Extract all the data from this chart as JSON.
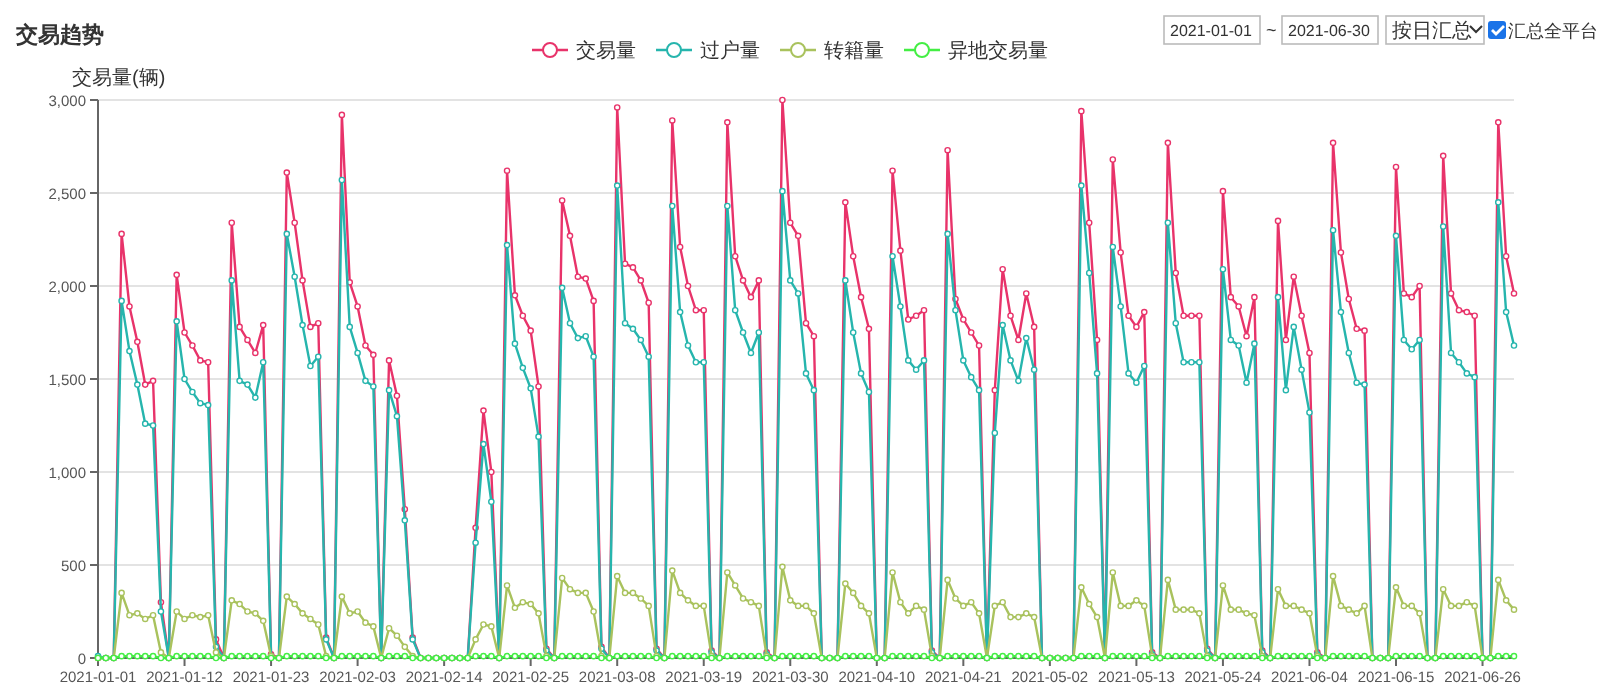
{
  "chart_data": {
    "type": "line",
    "title": "交易趋势",
    "ylabel": "交易量(辆)",
    "annotations": [
      "2021-01-01",
      "~",
      "2021-06-30",
      "按日汇总",
      "汇总全平台"
    ],
    "x": [
      "2021-01-01",
      "2021-01-02",
      "2021-01-03",
      "2021-01-04",
      "2021-01-05",
      "2021-01-06",
      "2021-01-07",
      "2021-01-08",
      "2021-01-09",
      "2021-01-10",
      "2021-01-11",
      "2021-01-12",
      "2021-01-13",
      "2021-01-14",
      "2021-01-15",
      "2021-01-16",
      "2021-01-17",
      "2021-01-18",
      "2021-01-19",
      "2021-01-20",
      "2021-01-21",
      "2021-01-22",
      "2021-01-23",
      "2021-01-24",
      "2021-01-25",
      "2021-01-26",
      "2021-01-27",
      "2021-01-28",
      "2021-01-29",
      "2021-01-30",
      "2021-01-31",
      "2021-02-01",
      "2021-02-02",
      "2021-02-03",
      "2021-02-04",
      "2021-02-05",
      "2021-02-06",
      "2021-02-07",
      "2021-02-08",
      "2021-02-09",
      "2021-02-10",
      "2021-02-11",
      "2021-02-12",
      "2021-02-13",
      "2021-02-14",
      "2021-02-15",
      "2021-02-16",
      "2021-02-17",
      "2021-02-18",
      "2021-02-19",
      "2021-02-20",
      "2021-02-21",
      "2021-02-22",
      "2021-02-23",
      "2021-02-24",
      "2021-02-25",
      "2021-02-26",
      "2021-02-27",
      "2021-02-28",
      "2021-03-01",
      "2021-03-02",
      "2021-03-03",
      "2021-03-04",
      "2021-03-05",
      "2021-03-06",
      "2021-03-07",
      "2021-03-08",
      "2021-03-09",
      "2021-03-10",
      "2021-03-11",
      "2021-03-12",
      "2021-03-13",
      "2021-03-14",
      "2021-03-15",
      "2021-03-16",
      "2021-03-17",
      "2021-03-18",
      "2021-03-19",
      "2021-03-20",
      "2021-03-21",
      "2021-03-22",
      "2021-03-23",
      "2021-03-24",
      "2021-03-25",
      "2021-03-26",
      "2021-03-27",
      "2021-03-28",
      "2021-03-29",
      "2021-03-30",
      "2021-03-31",
      "2021-04-01",
      "2021-04-02",
      "2021-04-03",
      "2021-04-04",
      "2021-04-05",
      "2021-04-06",
      "2021-04-07",
      "2021-04-08",
      "2021-04-09",
      "2021-04-10",
      "2021-04-11",
      "2021-04-12",
      "2021-04-13",
      "2021-04-14",
      "2021-04-15",
      "2021-04-16",
      "2021-04-17",
      "2021-04-18",
      "2021-04-19",
      "2021-04-20",
      "2021-04-21",
      "2021-04-22",
      "2021-04-23",
      "2021-04-24",
      "2021-04-25",
      "2021-04-26",
      "2021-04-27",
      "2021-04-28",
      "2021-04-29",
      "2021-04-30",
      "2021-05-01",
      "2021-05-02",
      "2021-05-03",
      "2021-05-04",
      "2021-05-05",
      "2021-05-06",
      "2021-05-07",
      "2021-05-08",
      "2021-05-09",
      "2021-05-10",
      "2021-05-11",
      "2021-05-12",
      "2021-05-13",
      "2021-05-14",
      "2021-05-15",
      "2021-05-16",
      "2021-05-17",
      "2021-05-18",
      "2021-05-19",
      "2021-05-20",
      "2021-05-21",
      "2021-05-22",
      "2021-05-23",
      "2021-05-24",
      "2021-05-25",
      "2021-05-26",
      "2021-05-27",
      "2021-05-28",
      "2021-05-29",
      "2021-05-30",
      "2021-05-31",
      "2021-06-01",
      "2021-06-02",
      "2021-06-03",
      "2021-06-04",
      "2021-06-05",
      "2021-06-06",
      "2021-06-07",
      "2021-06-08",
      "2021-06-09",
      "2021-06-10",
      "2021-06-11",
      "2021-06-12",
      "2021-06-13",
      "2021-06-14",
      "2021-06-15",
      "2021-06-16",
      "2021-06-17",
      "2021-06-18",
      "2021-06-19",
      "2021-06-20",
      "2021-06-21",
      "2021-06-22",
      "2021-06-23",
      "2021-06-24",
      "2021-06-25",
      "2021-06-26",
      "2021-06-27",
      "2021-06-28",
      "2021-06-29",
      "2021-06-30"
    ],
    "xlim": [
      "2021-01-01",
      "2021-06-30"
    ],
    "xticks": [
      "2021-01-01",
      "2021-01-12",
      "2021-01-23",
      "2021-02-03",
      "2021-02-14",
      "2021-02-25",
      "2021-03-08",
      "2021-03-19",
      "2021-03-30",
      "2021-04-10",
      "2021-04-21",
      "2021-05-02",
      "2021-05-13",
      "2021-05-24",
      "2021-06-04",
      "2021-06-15",
      "2021-06-26"
    ],
    "ylim": [
      0,
      3000
    ],
    "yticks": [
      0,
      500,
      {
        "value": 1000,
        "label": "1,000"
      },
      {
        "value": 1500,
        "label": "1,500"
      },
      {
        "value": 2000,
        "label": "2,000"
      },
      {
        "value": 2500,
        "label": "2,500"
      },
      {
        "value": 3000,
        "label": "3,000"
      }
    ],
    "grid": "y",
    "legend": "top",
    "marker": "circle",
    "line_style": "solid",
    "series": [
      {
        "name": "交易量",
        "color": "#e8336a",
        "values": [
          0,
          0,
          0,
          2280,
          1890,
          1700,
          1470,
          1490,
          300,
          0,
          2060,
          1750,
          1680,
          1600,
          1590,
          100,
          0,
          2340,
          1780,
          1710,
          1640,
          1790,
          20,
          0,
          2610,
          2340,
          2030,
          1780,
          1800,
          110,
          0,
          2920,
          2020,
          1890,
          1680,
          1630,
          0,
          1600,
          1410,
          800,
          110,
          0,
          0,
          0,
          0,
          0,
          0,
          0,
          700,
          1330,
          1000,
          0,
          2620,
          1950,
          1840,
          1760,
          1460,
          50,
          0,
          2460,
          2270,
          2050,
          2040,
          1920,
          60,
          0,
          2960,
          2120,
          2100,
          2030,
          1910,
          50,
          0,
          2890,
          2210,
          2000,
          1870,
          1870,
          40,
          0,
          2880,
          2160,
          2030,
          1940,
          2030,
          30,
          0,
          3000,
          2340,
          2270,
          1800,
          1730,
          0,
          0,
          0,
          2450,
          2160,
          1940,
          1770,
          0,
          0,
          2620,
          2190,
          1820,
          1840,
          1870,
          40,
          0,
          2730,
          1930,
          1820,
          1750,
          1680,
          0,
          1440,
          2090,
          1840,
          1710,
          1960,
          1780,
          0,
          0,
          0,
          0,
          0,
          2940,
          2340,
          1710,
          0,
          2680,
          2180,
          1840,
          1780,
          1860,
          30,
          0,
          2770,
          2070,
          1840,
          1840,
          1840,
          50,
          0,
          2510,
          1940,
          1890,
          1730,
          1940,
          40,
          0,
          2350,
          1710,
          2050,
          1840,
          1640,
          30,
          0,
          2770,
          2180,
          1930,
          1770,
          1760,
          0,
          0,
          0,
          2640,
          1960,
          1940,
          2000,
          0,
          0,
          2700,
          1960,
          1870,
          1860,
          1840,
          0,
          0,
          2880,
          2160,
          1960
        ]
      },
      {
        "name": "过户量",
        "color": "#26b5ad",
        "values": [
          10,
          0,
          0,
          1920,
          1650,
          1470,
          1260,
          1250,
          250,
          0,
          1810,
          1500,
          1430,
          1370,
          1360,
          60,
          0,
          2030,
          1490,
          1470,
          1400,
          1590,
          10,
          0,
          2280,
          2050,
          1790,
          1570,
          1620,
          100,
          0,
          2570,
          1780,
          1640,
          1490,
          1460,
          0,
          1440,
          1300,
          740,
          100,
          0,
          0,
          0,
          0,
          0,
          0,
          0,
          620,
          1150,
          840,
          0,
          2220,
          1690,
          1560,
          1450,
          1190,
          40,
          0,
          1990,
          1800,
          1720,
          1730,
          1620,
          50,
          0,
          2540,
          1800,
          1770,
          1710,
          1620,
          40,
          0,
          2430,
          1860,
          1680,
          1590,
          1590,
          30,
          0,
          2430,
          1870,
          1750,
          1640,
          1750,
          20,
          0,
          2510,
          2030,
          1960,
          1530,
          1440,
          0,
          0,
          0,
          2030,
          1750,
          1530,
          1430,
          0,
          0,
          2160,
          1890,
          1600,
          1550,
          1600,
          30,
          0,
          2280,
          1870,
          1600,
          1510,
          1440,
          0,
          1210,
          1790,
          1600,
          1490,
          1720,
          1550,
          0,
          0,
          0,
          0,
          0,
          2540,
          2070,
          1530,
          0,
          2210,
          1890,
          1530,
          1480,
          1570,
          20,
          0,
          2340,
          1800,
          1590,
          1590,
          1590,
          40,
          0,
          2090,
          1710,
          1680,
          1480,
          1690,
          30,
          0,
          1940,
          1440,
          1780,
          1550,
          1320,
          20,
          0,
          2300,
          1860,
          1640,
          1480,
          1470,
          0,
          0,
          0,
          2270,
          1710,
          1660,
          1710,
          0,
          0,
          2320,
          1640,
          1590,
          1530,
          1510,
          0,
          0,
          2450,
          1860,
          1680
        ]
      },
      {
        "name": "转籍量",
        "color": "#a9c25d",
        "values": [
          0,
          0,
          0,
          350,
          230,
          240,
          210,
          230,
          30,
          0,
          250,
          210,
          230,
          220,
          230,
          30,
          0,
          310,
          290,
          250,
          240,
          200,
          10,
          0,
          330,
          290,
          240,
          210,
          180,
          10,
          0,
          330,
          240,
          250,
          190,
          170,
          0,
          160,
          120,
          60,
          10,
          0,
          0,
          0,
          0,
          0,
          0,
          0,
          100,
          180,
          170,
          0,
          390,
          270,
          300,
          290,
          240,
          10,
          0,
          430,
          370,
          350,
          350,
          250,
          10,
          0,
          440,
          350,
          350,
          320,
          280,
          10,
          0,
          470,
          350,
          310,
          280,
          280,
          10,
          0,
          460,
          390,
          320,
          300,
          280,
          10,
          0,
          490,
          310,
          280,
          280,
          240,
          0,
          0,
          0,
          400,
          350,
          280,
          240,
          0,
          0,
          460,
          300,
          240,
          280,
          260,
          10,
          0,
          420,
          320,
          280,
          300,
          240,
          0,
          280,
          300,
          220,
          220,
          240,
          220,
          0,
          0,
          0,
          0,
          0,
          380,
          290,
          220,
          0,
          460,
          280,
          280,
          310,
          280,
          10,
          0,
          420,
          260,
          260,
          260,
          240,
          10,
          0,
          390,
          260,
          260,
          240,
          230,
          10,
          0,
          370,
          280,
          280,
          260,
          240,
          10,
          0,
          440,
          280,
          260,
          240,
          280,
          0,
          0,
          0,
          380,
          280,
          280,
          240,
          0,
          0,
          370,
          280,
          280,
          300,
          280,
          0,
          0,
          420,
          310,
          260
        ]
      },
      {
        "name": "异地交易量",
        "color": "#44ee44",
        "values": [
          0,
          0,
          0,
          10,
          10,
          10,
          10,
          10,
          0,
          0,
          10,
          10,
          10,
          10,
          10,
          0,
          0,
          10,
          10,
          10,
          10,
          10,
          0,
          0,
          10,
          10,
          10,
          10,
          10,
          0,
          0,
          10,
          10,
          10,
          10,
          10,
          0,
          10,
          10,
          10,
          0,
          0,
          0,
          0,
          0,
          0,
          0,
          0,
          10,
          10,
          10,
          0,
          10,
          10,
          10,
          10,
          10,
          0,
          0,
          10,
          10,
          10,
          10,
          10,
          0,
          0,
          10,
          10,
          10,
          10,
          10,
          0,
          0,
          10,
          10,
          10,
          10,
          10,
          0,
          0,
          10,
          10,
          10,
          10,
          10,
          0,
          0,
          10,
          10,
          10,
          10,
          10,
          0,
          0,
          0,
          10,
          10,
          10,
          10,
          0,
          0,
          10,
          10,
          10,
          10,
          10,
          0,
          0,
          10,
          10,
          10,
          10,
          10,
          0,
          10,
          10,
          10,
          10,
          10,
          10,
          0,
          0,
          0,
          0,
          0,
          10,
          10,
          10,
          0,
          10,
          10,
          10,
          10,
          10,
          0,
          0,
          10,
          10,
          10,
          10,
          10,
          0,
          0,
          10,
          10,
          10,
          10,
          10,
          0,
          0,
          10,
          10,
          10,
          10,
          10,
          0,
          0,
          10,
          10,
          10,
          10,
          10,
          0,
          0,
          0,
          10,
          10,
          10,
          10,
          0,
          0,
          10,
          10,
          10,
          10,
          10,
          0,
          0,
          10,
          10,
          10
        ]
      }
    ]
  }
}
